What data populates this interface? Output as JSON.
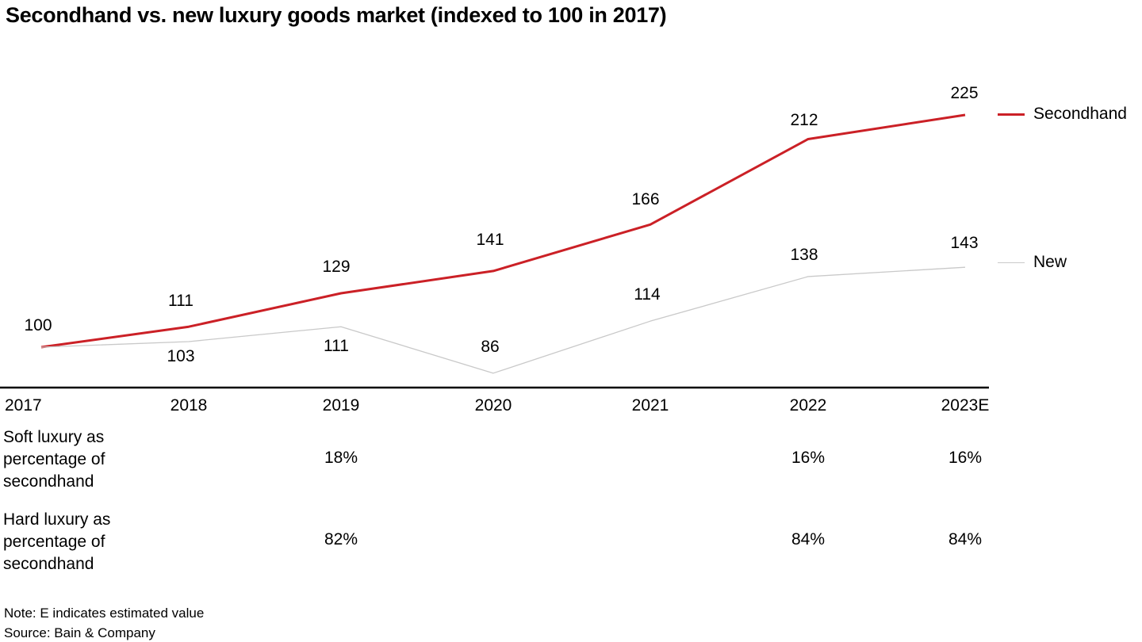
{
  "title": "Secondhand vs. new luxury goods market (indexed to 100 in 2017)",
  "colors": {
    "secondhand_line": "#cb2026",
    "new_line": "#c9c9c9",
    "axis": "#000000",
    "text": "#000000",
    "background": "#ffffff"
  },
  "chart_data": {
    "type": "line",
    "title": "Secondhand vs. new luxury goods market (indexed to 100 in 2017)",
    "categories": [
      "2017",
      "2018",
      "2019",
      "2020",
      "2021",
      "2022",
      "2023E"
    ],
    "series": [
      {
        "name": "Secondhand",
        "color": "#cb2026",
        "values": [
          100,
          111,
          129,
          141,
          166,
          212,
          225
        ]
      },
      {
        "name": "New",
        "color": "#c9c9c9",
        "values": [
          100,
          103,
          111,
          86,
          114,
          138,
          143
        ]
      }
    ],
    "index_base": 100,
    "index_base_year": "2017",
    "value_labels_shown": true,
    "legend_position": "right",
    "grid": false,
    "y_axis_shown": false
  },
  "table": {
    "rows": [
      {
        "label": "Soft luxury as percentage of secondhand",
        "values": [
          "",
          "",
          "18%",
          "",
          "",
          "16%",
          "16%"
        ]
      },
      {
        "label": "Hard luxury as percentage of secondhand",
        "values": [
          "",
          "",
          "82%",
          "",
          "",
          "84%",
          "84%"
        ]
      }
    ]
  },
  "footer": {
    "note": "Note: E indicates estimated value",
    "source": "Source: Bain & Company"
  }
}
